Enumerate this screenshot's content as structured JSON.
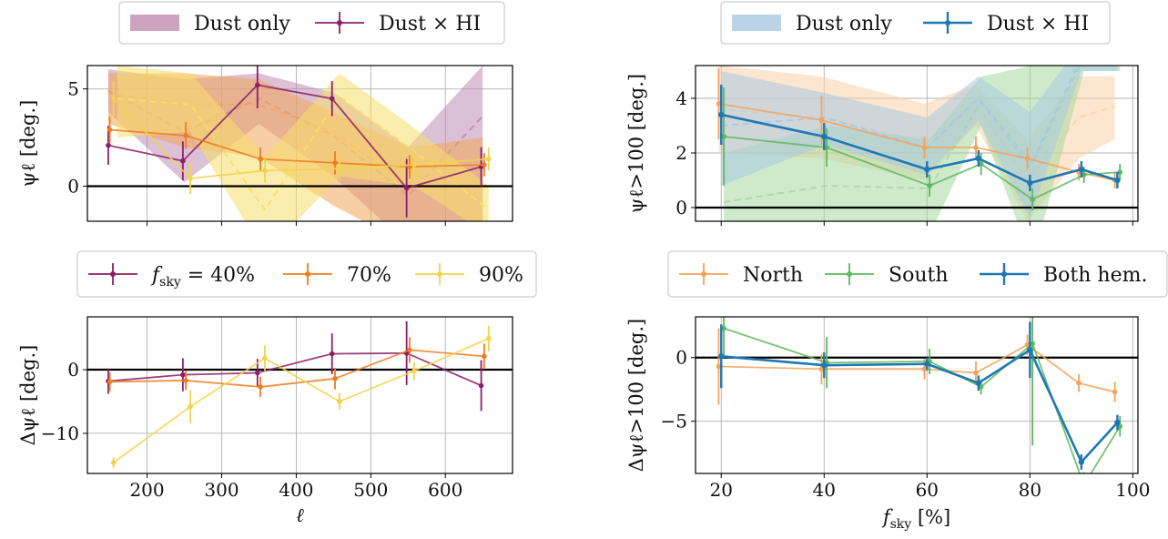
{
  "chart_data": [
    {
      "id": "tl",
      "type": "line",
      "ylabel": "ψℓ [deg.]",
      "xlabel": "",
      "xlim": [
        120,
        690
      ],
      "ylim": [
        -1.8,
        6.2
      ],
      "xticks": [
        200,
        300,
        400,
        500,
        600
      ],
      "show_xticklabels": false,
      "yticks": [
        0,
        5
      ],
      "ytick_labels": [
        "0",
        "5"
      ],
      "grid": true,
      "legend": {
        "entries": [
          {
            "kind": "band",
            "label": "Dust only",
            "color": "#c08cb2"
          },
          {
            "kind": "errorline",
            "label": "Dust × HI",
            "color": "#8b1f6a"
          }
        ]
      },
      "bands": [
        {
          "name": "",
          "color": "#c08cb2",
          "x": [
            148,
            250,
            350,
            450,
            550,
            650
          ],
          "lower": [
            3.8,
            0.2,
            3.2,
            0.5,
            -3.0,
            -2.0
          ],
          "upper": [
            6.0,
            5.5,
            5.8,
            4.8,
            2.0,
            6.2
          ],
          "center": [
            4.9,
            2.8,
            4.5,
            2.6,
            -0.5,
            3.6
          ]
        },
        {
          "name": "",
          "color": "#f2a65a",
          "x": [
            148,
            250,
            350,
            450,
            550,
            650
          ],
          "lower": [
            3.2,
            2.0,
            1.5,
            -1.0,
            -3.0,
            -2.5
          ],
          "upper": [
            5.8,
            5.8,
            5.5,
            3.8,
            2.0,
            2.5
          ],
          "center": [
            4.8,
            4.2,
            4.2,
            2.8,
            0.0,
            0.0
          ]
        },
        {
          "name": "",
          "color": "#f7de6a",
          "x": [
            160,
            258,
            358,
            458,
            558,
            658
          ],
          "lower": [
            2.5,
            2.8,
            -3.5,
            0.5,
            0.0,
            -2.5
          ],
          "upper": [
            6.2,
            5.8,
            1.5,
            5.8,
            3.0,
            0.0
          ],
          "center": [
            4.5,
            4.2,
            -1.2,
            4.6,
            1.8,
            -1.2
          ]
        }
      ],
      "series": [
        {
          "name": "",
          "color": "#8b1f6a",
          "x": [
            148,
            248,
            348,
            448,
            548,
            648
          ],
          "y": [
            2.1,
            1.3,
            5.2,
            4.5,
            -0.1,
            1.0
          ],
          "err": [
            1.0,
            1.0,
            1.2,
            0.9,
            1.5,
            1.0
          ]
        },
        {
          "name": "",
          "color": "#ef7d21",
          "x": [
            150,
            252,
            352,
            452,
            552,
            652
          ],
          "y": [
            2.9,
            2.6,
            1.4,
            1.2,
            1.0,
            1.1
          ],
          "err": [
            0.7,
            0.7,
            0.6,
            0.6,
            0.6,
            0.6
          ]
        },
        {
          "name": "",
          "color": "#f2d34a",
          "x": [
            155,
            258,
            358,
            458,
            558,
            658
          ],
          "y": [
            4.5,
            0.4,
            0.8,
            0.9,
            1.1,
            1.4
          ],
          "err": [
            0.9,
            0.8,
            0.6,
            0.6,
            0.6,
            0.6
          ]
        }
      ]
    },
    {
      "id": "bl",
      "type": "line",
      "ylabel": "Δψℓ [deg.]",
      "xlabel": "ℓ",
      "xlim": [
        120,
        690
      ],
      "ylim": [
        -16.3,
        8.3
      ],
      "xticks": [
        200,
        300,
        400,
        500,
        600
      ],
      "show_xticklabels": true,
      "yticks": [
        -10,
        0
      ],
      "ytick_labels": [
        "−10",
        "0"
      ],
      "grid": true,
      "legend": {
        "entries": [
          {
            "kind": "errorline",
            "label_prefix": "f",
            "label_sub": "sky",
            "label_suffix": " = 40%",
            "color": "#8b1f6a"
          },
          {
            "kind": "errorline",
            "label": "70%",
            "color": "#ef7d21"
          },
          {
            "kind": "errorline",
            "label": "90%",
            "color": "#f2d34a"
          }
        ]
      },
      "series": [
        {
          "name": "",
          "color": "#8b1f6a",
          "x": [
            148,
            248,
            348,
            448,
            548,
            648
          ],
          "y": [
            -1.8,
            -0.8,
            -0.5,
            2.5,
            2.6,
            -2.5
          ],
          "err": [
            2.0,
            2.6,
            2.2,
            3.2,
            5.0,
            4.0
          ]
        },
        {
          "name": "",
          "color": "#ef7d21",
          "x": [
            150,
            252,
            352,
            452,
            552,
            652
          ],
          "y": [
            -1.9,
            -1.7,
            -2.7,
            -1.4,
            3.1,
            2.1
          ],
          "err": [
            1.5,
            1.5,
            1.6,
            1.7,
            2.0,
            2.0
          ]
        },
        {
          "name": "",
          "color": "#f2d34a",
          "x": [
            155,
            258,
            358,
            458,
            558,
            658
          ],
          "y": [
            -14.6,
            -5.8,
            1.8,
            -5.0,
            -0.2,
            4.9
          ],
          "err": [
            0.8,
            2.6,
            2.0,
            1.3,
            1.4,
            2.0
          ]
        }
      ]
    },
    {
      "id": "tr",
      "type": "line",
      "ylabel": "ψℓ>100 [deg.]",
      "xlabel": "",
      "xlim": [
        15,
        101
      ],
      "ylim": [
        -0.5,
        5.2
      ],
      "xticks": [
        20,
        40,
        60,
        80,
        100
      ],
      "show_xticklabels": false,
      "yticks": [
        0,
        2,
        4
      ],
      "ytick_labels": [
        "0",
        "2",
        "4"
      ],
      "grid": true,
      "legend": {
        "entries": [
          {
            "kind": "band",
            "label": "Dust only",
            "color": "#a8c8e2"
          },
          {
            "kind": "errorline",
            "label": "Dust × HI",
            "color": "#1f77b4"
          }
        ]
      },
      "bands": [
        {
          "name": "",
          "color": "#fcd2a8",
          "x": [
            19.5,
            39.5,
            59.5,
            69.5,
            79.5,
            89.5,
            96.5
          ],
          "lower": [
            2.0,
            1.8,
            1.0,
            3.0,
            -0.5,
            1.8,
            2.5
          ],
          "upper": [
            5.2,
            4.8,
            3.8,
            4.5,
            2.5,
            4.8,
            4.8
          ],
          "center": [
            3.6,
            3.3,
            2.4,
            3.8,
            1.0,
            3.3,
            3.7
          ]
        },
        {
          "name": "",
          "color": "#a8d8a0",
          "x": [
            20.5,
            40.5,
            60.5,
            70.5,
            80.5,
            90.5,
            97.5
          ],
          "lower": [
            -2.0,
            -2.0,
            -1.0,
            3.0,
            -2.0,
            5.0,
            5.0
          ],
          "upper": [
            2.0,
            3.0,
            2.5,
            4.8,
            5.2,
            6.0,
            6.0
          ],
          "center": [
            0.2,
            0.8,
            0.7,
            3.9,
            1.6,
            5.5,
            5.5
          ]
        },
        {
          "name": "",
          "color": "#a8c8e2",
          "x": [
            20,
            40,
            60,
            70,
            80,
            90,
            97
          ],
          "lower": [
            0.8,
            2.3,
            1.2,
            3.2,
            -0.4,
            5.0,
            5.0
          ],
          "upper": [
            5.0,
            4.2,
            3.3,
            4.8,
            3.5,
            6.0,
            6.0
          ],
          "center": [
            3.0,
            3.3,
            2.2,
            4.0,
            1.5,
            5.5,
            5.5
          ]
        }
      ],
      "series": [
        {
          "name": "",
          "color": "#f5a25a",
          "x": [
            19.5,
            39.5,
            59.5,
            69.5,
            79.5,
            89.5,
            96.5
          ],
          "y": [
            3.8,
            3.2,
            2.2,
            2.2,
            1.8,
            1.3,
            1.0
          ],
          "err": [
            1.3,
            0.9,
            0.4,
            0.4,
            0.4,
            0.3,
            0.3
          ]
        },
        {
          "name": "",
          "color": "#5cb85c",
          "x": [
            20.5,
            40.5,
            60.5,
            70.5,
            80.5,
            90.5,
            97.5
          ],
          "y": [
            2.6,
            2.2,
            0.8,
            1.6,
            0.3,
            1.2,
            1.3
          ],
          "err": [
            1.8,
            0.7,
            0.4,
            0.4,
            0.4,
            0.3,
            0.3
          ]
        },
        {
          "name": "",
          "color": "#1f77b4",
          "x": [
            20,
            40,
            60,
            70,
            80,
            90,
            97
          ],
          "y": [
            3.4,
            2.6,
            1.4,
            1.8,
            0.9,
            1.4,
            1.0
          ],
          "err": [
            1.1,
            0.5,
            0.3,
            0.3,
            0.3,
            0.3,
            0.3
          ]
        }
      ]
    },
    {
      "id": "br",
      "type": "line",
      "ylabel": "Δψℓ>100 [deg.]",
      "xlabel_prefix": "f",
      "xlabel_sub": "sky",
      "xlabel_suffix": " [%]",
      "xlim": [
        15,
        101
      ],
      "ylim": [
        -9.1,
        3.2
      ],
      "xticks": [
        20,
        40,
        60,
        80,
        100
      ],
      "show_xticklabels": true,
      "yticks": [
        -5,
        0
      ],
      "ytick_labels": [
        "−5",
        "0"
      ],
      "grid": true,
      "legend": {
        "entries": [
          {
            "kind": "errorline",
            "label": "North",
            "color": "#f5a25a"
          },
          {
            "kind": "errorline",
            "label": "South",
            "color": "#5cb85c"
          },
          {
            "kind": "errorline",
            "label": "Both hem.",
            "color": "#1f77b4"
          }
        ]
      },
      "series": [
        {
          "name": "",
          "color": "#f5a25a",
          "x": [
            19.5,
            39.5,
            59.5,
            69.5,
            79.5,
            89.5,
            96.5
          ],
          "y": [
            -0.7,
            -0.9,
            -0.9,
            -1.2,
            1.0,
            -2.0,
            -2.7
          ],
          "err": [
            3.0,
            1.2,
            0.8,
            0.9,
            0.8,
            0.7,
            0.8
          ]
        },
        {
          "name": "",
          "color": "#5cb85c",
          "x": [
            20.5,
            40.5,
            60.5,
            70.5,
            80.5,
            90.5,
            97.5
          ],
          "y": [
            2.3,
            -0.4,
            -0.3,
            -2.3,
            1.1,
            -10.0,
            -5.4
          ],
          "err": [
            2.3,
            2.0,
            1.0,
            0.6,
            8.0,
            1.0,
            0.8
          ]
        },
        {
          "name": "",
          "color": "#1f77b4",
          "x": [
            20,
            40,
            60,
            70,
            80,
            90,
            97
          ],
          "y": [
            0.1,
            -0.6,
            -0.5,
            -2.0,
            0.6,
            -8.2,
            -5.1
          ],
          "err": [
            2.5,
            1.0,
            0.5,
            0.6,
            2.2,
            0.6,
            0.6
          ]
        }
      ]
    }
  ]
}
